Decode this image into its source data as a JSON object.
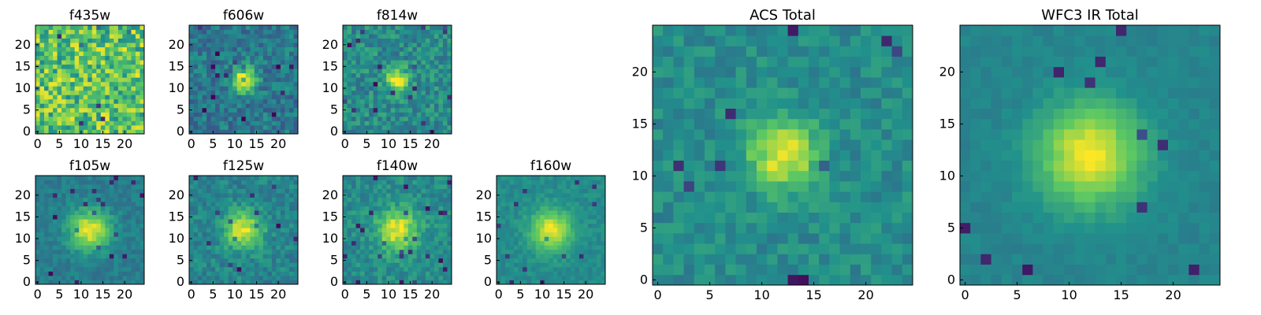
{
  "chart_data": [
    {
      "type": "heatmap",
      "title": "f435w",
      "image_size": [
        25,
        25
      ],
      "colormap": "viridis",
      "xticks": [
        0,
        5,
        10,
        15,
        20
      ],
      "yticks": [
        0,
        5,
        10,
        15,
        20
      ],
      "source_center": null,
      "source_peak": 0.0,
      "source_sigma": 3.0,
      "background_level": 0.72,
      "noise_level": 0.26,
      "seed": 11
    },
    {
      "type": "heatmap",
      "title": "f606w",
      "image_size": [
        25,
        25
      ],
      "colormap": "viridis",
      "xticks": [
        0,
        5,
        10,
        15,
        20
      ],
      "yticks": [
        0,
        5,
        10,
        15,
        20
      ],
      "source_center": [
        12,
        12
      ],
      "source_peak": 0.6,
      "source_sigma": 2.0,
      "background_level": 0.4,
      "noise_level": 0.14,
      "seed": 23
    },
    {
      "type": "heatmap",
      "title": "f814w",
      "image_size": [
        25,
        25
      ],
      "colormap": "viridis",
      "xticks": [
        0,
        5,
        10,
        15,
        20
      ],
      "yticks": [
        0,
        5,
        10,
        15,
        20
      ],
      "source_center": [
        12,
        12
      ],
      "source_peak": 0.55,
      "source_sigma": 1.8,
      "background_level": 0.48,
      "noise_level": 0.14,
      "seed": 37
    },
    {
      "type": "heatmap",
      "title": "f105w",
      "image_size": [
        25,
        25
      ],
      "colormap": "viridis",
      "xticks": [
        0,
        5,
        10,
        15,
        20
      ],
      "yticks": [
        0,
        5,
        10,
        15,
        20
      ],
      "source_center": [
        12,
        12
      ],
      "source_peak": 0.55,
      "source_sigma": 3.2,
      "background_level": 0.42,
      "noise_level": 0.07,
      "seed": 41
    },
    {
      "type": "heatmap",
      "title": "f125w",
      "image_size": [
        25,
        25
      ],
      "colormap": "viridis",
      "xticks": [
        0,
        5,
        10,
        15,
        20
      ],
      "yticks": [
        0,
        5,
        10,
        15,
        20
      ],
      "source_center": [
        12,
        12
      ],
      "source_peak": 0.5,
      "source_sigma": 3.0,
      "background_level": 0.45,
      "noise_level": 0.1,
      "seed": 53
    },
    {
      "type": "heatmap",
      "title": "f140w",
      "image_size": [
        25,
        25
      ],
      "colormap": "viridis",
      "xticks": [
        0,
        5,
        10,
        15,
        20
      ],
      "yticks": [
        0,
        5,
        10,
        15,
        20
      ],
      "source_center": [
        12,
        12
      ],
      "source_peak": 0.5,
      "source_sigma": 3.2,
      "background_level": 0.48,
      "noise_level": 0.1,
      "seed": 67
    },
    {
      "type": "heatmap",
      "title": "f160w",
      "image_size": [
        25,
        25
      ],
      "colormap": "viridis",
      "xticks": [
        0,
        5,
        10,
        15,
        20
      ],
      "yticks": [
        0,
        5,
        10,
        15,
        20
      ],
      "source_center": [
        12,
        12
      ],
      "source_peak": 0.5,
      "source_sigma": 3.2,
      "background_level": 0.48,
      "noise_level": 0.06,
      "seed": 79
    },
    {
      "type": "heatmap",
      "title": "ACS Total",
      "image_size": [
        25,
        25
      ],
      "colormap": "viridis",
      "xticks": [
        0,
        5,
        10,
        15,
        20
      ],
      "yticks": [
        0,
        5,
        10,
        15,
        20
      ],
      "source_center": [
        12,
        12
      ],
      "source_peak": 0.5,
      "source_sigma": 2.3,
      "background_level": 0.48,
      "noise_level": 0.09,
      "seed": 97
    },
    {
      "type": "heatmap",
      "title": "WFC3 IR Total",
      "image_size": [
        25,
        25
      ],
      "colormap": "viridis",
      "xticks": [
        0,
        5,
        10,
        15,
        20
      ],
      "yticks": [
        0,
        5,
        10,
        15,
        20
      ],
      "source_center": [
        12,
        12
      ],
      "source_peak": 0.55,
      "source_sigma": 3.4,
      "background_level": 0.45,
      "noise_level": 0.035,
      "seed": 113
    }
  ]
}
